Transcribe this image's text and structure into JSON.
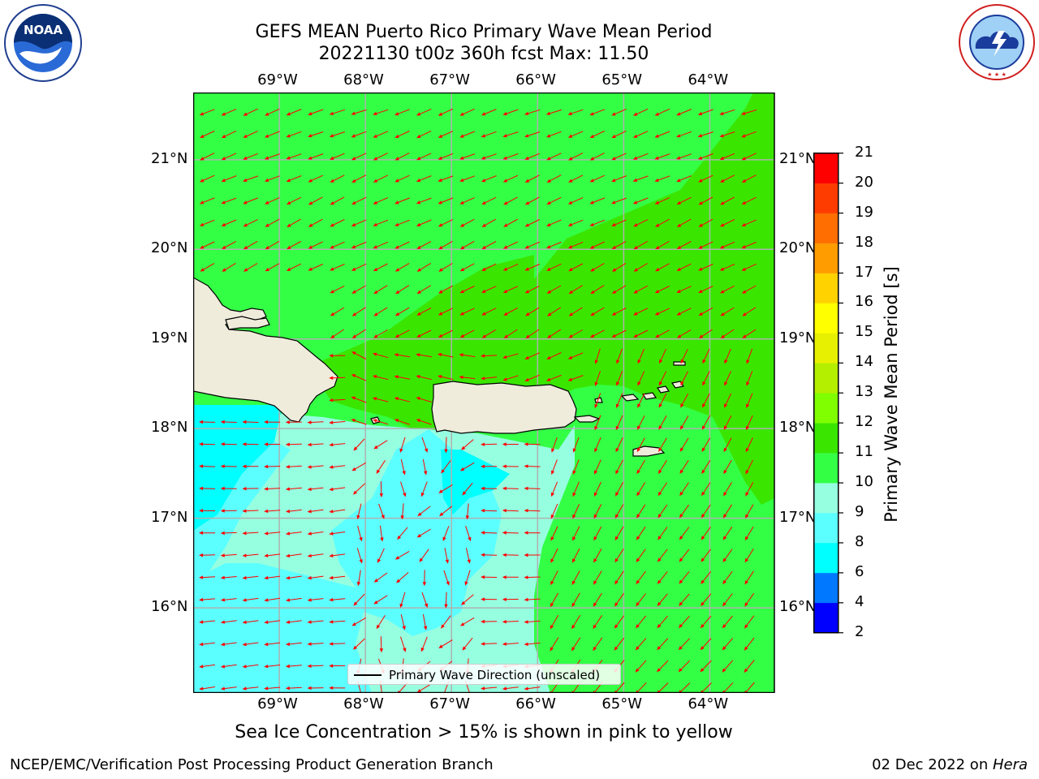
{
  "header": {
    "title_line1": "GEFS MEAN Puerto Rico Primary Wave Mean Period",
    "title_line2": "20221130 t00z 360h fcst   Max: 11.50"
  },
  "logos": {
    "left": "NOAA",
    "left_ring_text": "NATIONAL OCEANIC AND ATMOSPHERIC ADMINISTRATION · U.S. DEPARTMENT OF COMMERCE",
    "right_ring_text": "NATIONAL WEATHER SERVICE"
  },
  "map": {
    "lon_labels": [
      "69°W",
      "68°W",
      "67°W",
      "66°W",
      "65°W",
      "64°W"
    ],
    "lat_labels": [
      "21°N",
      "20°N",
      "19°N",
      "18°N",
      "17°N",
      "16°N"
    ],
    "lon_range": [
      -70.0,
      -63.25
    ],
    "lat_range": [
      15.05,
      21.75
    ],
    "legend_label": "Primary Wave Direction (unscaled)",
    "arrow_color": "#ff0000",
    "land_color": "#efecdc"
  },
  "colorbar": {
    "title": "Primary Wave Mean Period [s]",
    "ticks": [
      "2",
      "4",
      "6",
      "8",
      "9",
      "10",
      "11",
      "12",
      "13",
      "14",
      "15",
      "16",
      "17",
      "18",
      "19",
      "20",
      "21"
    ],
    "colors": [
      "#0000ff",
      "#0078ff",
      "#00ffff",
      "#5cffff",
      "#96ffe0",
      "#33ff45",
      "#3ae600",
      "#80ff00",
      "#b4ef00",
      "#e6f000",
      "#ffff00",
      "#ffd200",
      "#ff9c00",
      "#ff6e00",
      "#ff3c00",
      "#ff0000"
    ]
  },
  "bottom_note": "Sea Ice Concentration > 15% is shown in pink to yellow",
  "footer": {
    "left": "NCEP/EMC/Verification Post Processing Product Generation Branch",
    "date": "02 Dec 2022 on ",
    "host": "Hera"
  }
}
